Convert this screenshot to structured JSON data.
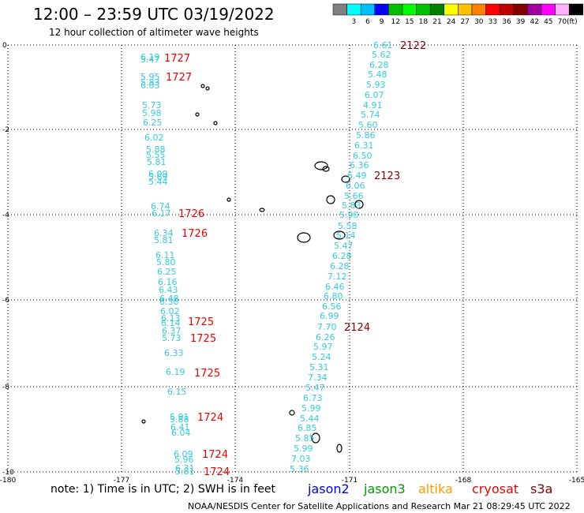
{
  "header": {
    "title": "12:00 – 23:59 UTC 03/19/2022",
    "subtitle": "12 hour collection of altimeter wave heights"
  },
  "color_scale": {
    "unit_label": "(ft)",
    "bins": [
      {
        "label": "",
        "color": "#808080"
      },
      {
        "label": "3",
        "color": "#00ffff"
      },
      {
        "label": "6",
        "color": "#00c0ff"
      },
      {
        "label": "9",
        "color": "#0000ff"
      },
      {
        "label": "12",
        "color": "#00c000"
      },
      {
        "label": "15",
        "color": "#00ff00"
      },
      {
        "label": "18",
        "color": "#00c000"
      },
      {
        "label": "21",
        "color": "#008000"
      },
      {
        "label": "24",
        "color": "#ffff00"
      },
      {
        "label": "27",
        "color": "#ffc000"
      },
      {
        "label": "30",
        "color": "#ff8000"
      },
      {
        "label": "33",
        "color": "#ff0000"
      },
      {
        "label": "36",
        "color": "#c00000"
      },
      {
        "label": "39",
        "color": "#800000"
      },
      {
        "label": "42",
        "color": "#a000a0"
      },
      {
        "label": "45",
        "color": "#ff00ff"
      },
      {
        "label": "70",
        "color": "#ffb0ff"
      },
      {
        "label": "",
        "color": "#000000"
      }
    ]
  },
  "axes": {
    "lon_ticks": [
      "-180",
      "-177",
      "-174",
      "-171",
      "-168",
      "-165"
    ],
    "lat_ticks": [
      "0",
      "-2",
      "-4",
      "-6",
      "-8",
      "-10"
    ]
  },
  "passes": {
    "west": {
      "color": "#33ccdd",
      "time_color": "#ee0000",
      "values": [
        [
          "6.19",
          178,
          72
        ],
        [
          "5.47",
          178,
          75
        ],
        [
          "5.95",
          178,
          97
        ],
        [
          "5.83",
          178,
          104
        ],
        [
          "6.03",
          178,
          108
        ],
        [
          "5.73",
          180,
          133
        ],
        [
          "5.98",
          180,
          143
        ],
        [
          "6.25",
          181,
          155
        ],
        [
          "6.02",
          183,
          174
        ],
        [
          "5.88",
          185,
          189
        ],
        [
          "5.55",
          185,
          196
        ],
        [
          "5.81",
          186,
          205
        ],
        [
          "6.09",
          188,
          220
        ],
        [
          "5.69",
          188,
          224
        ],
        [
          "5.44",
          188,
          230
        ],
        [
          "6.74",
          191,
          261
        ],
        [
          "6.17",
          192,
          270
        ],
        [
          "6.34",
          195,
          295
        ],
        [
          "5.81",
          195,
          304
        ],
        [
          "6.11",
          197,
          323
        ],
        [
          "5.80",
          198,
          332
        ],
        [
          "6.25",
          199,
          344
        ],
        [
          "6.16",
          200,
          357
        ],
        [
          "6.43",
          201,
          367
        ],
        [
          "6.48",
          202,
          378
        ],
        [
          "6.30",
          202,
          382
        ],
        [
          "6.02",
          203,
          394
        ],
        [
          "6.13",
          204,
          403
        ],
        [
          "6.14",
          204,
          409
        ],
        [
          "6.37",
          205,
          419
        ],
        [
          "5.73",
          205,
          428
        ],
        [
          "6.33",
          208,
          447
        ],
        [
          "6.19",
          210,
          471
        ],
        [
          "6.15",
          212,
          496
        ],
        [
          "5.91",
          215,
          528
        ],
        [
          "5.88",
          215,
          531
        ],
        [
          "6.41",
          216,
          541
        ],
        [
          "6.04",
          217,
          548
        ],
        [
          "6.09",
          220,
          575
        ],
        [
          "5.96",
          221,
          582
        ],
        [
          "6.31",
          222,
          593
        ],
        [
          "5.81",
          222,
          597
        ]
      ],
      "times": [
        [
          "1727",
          208,
          73
        ],
        [
          "1727",
          210,
          97
        ],
        [
          "1726",
          226,
          270
        ],
        [
          "1726",
          230,
          295
        ],
        [
          "1725",
          238,
          407
        ],
        [
          "1725",
          241,
          428
        ],
        [
          "1725",
          246,
          472
        ],
        [
          "1724",
          250,
          528
        ],
        [
          "1724",
          256,
          575
        ],
        [
          "1724",
          258,
          597
        ]
      ]
    },
    "east": {
      "color": "#33ccdd",
      "time_color": "#880000",
      "values": [
        [
          "6.61",
          473,
          57
        ],
        [
          "5.62",
          471,
          69
        ],
        [
          "6.28",
          468,
          82
        ],
        [
          "5.48",
          466,
          94
        ],
        [
          "5.93",
          464,
          107
        ],
        [
          "6.07",
          462,
          120
        ],
        [
          "4.91",
          460,
          133
        ],
        [
          "5.74",
          457,
          145
        ],
        [
          "5.60",
          454,
          158
        ],
        [
          "5.86",
          451,
          171
        ],
        [
          "6.31",
          449,
          184
        ],
        [
          "6.50",
          447,
          197
        ],
        [
          "6.36",
          443,
          209
        ],
        [
          "6.49",
          440,
          222
        ],
        [
          "6.06",
          438,
          235
        ],
        [
          "5.66",
          436,
          248
        ],
        [
          "5.83",
          433,
          260
        ],
        [
          "5.90",
          430,
          272
        ],
        [
          "5.58",
          428,
          286
        ],
        [
          "5.14",
          426,
          298
        ],
        [
          "5.47",
          423,
          311
        ],
        [
          "6.28",
          421,
          324
        ],
        [
          "6.28",
          418,
          337
        ],
        [
          "7.12",
          415,
          350
        ],
        [
          "6.46",
          412,
          363
        ],
        [
          "6.80",
          410,
          375
        ],
        [
          "6.56",
          408,
          388
        ],
        [
          "6.99",
          405,
          400
        ],
        [
          "7.70",
          402,
          414
        ],
        [
          "6.26",
          400,
          427
        ],
        [
          "5.97",
          397,
          439
        ],
        [
          "5.24",
          395,
          452
        ],
        [
          "5.31",
          392,
          465
        ],
        [
          "7.34",
          390,
          478
        ],
        [
          "5.47",
          387,
          491
        ],
        [
          "6.73",
          384,
          504
        ],
        [
          "5.99",
          382,
          517
        ],
        [
          "5.44",
          380,
          530
        ],
        [
          "6.85",
          377,
          542
        ],
        [
          "5.85",
          374,
          555
        ],
        [
          "5.99",
          372,
          568
        ],
        [
          "7.03",
          369,
          581
        ],
        [
          "5.36",
          367,
          594
        ]
      ],
      "times": [
        [
          "2122",
          507,
          57
        ],
        [
          "2123",
          474,
          222
        ],
        [
          "2124",
          436,
          414
        ]
      ]
    }
  },
  "islands": [
    [
      407,
      210,
      8,
      5
    ],
    [
      413,
      214,
      4,
      3
    ],
    [
      438,
      227,
      5,
      4
    ],
    [
      419,
      253,
      5,
      5
    ],
    [
      455,
      259,
      5,
      5
    ],
    [
      385,
      301,
      8,
      6
    ],
    [
      430,
      298,
      7,
      5
    ],
    [
      332,
      266,
      3,
      2
    ],
    [
      290,
      253,
      2,
      2
    ],
    [
      257,
      109,
      2,
      2
    ],
    [
      263,
      112,
      2,
      2
    ],
    [
      250,
      145,
      2,
      2
    ],
    [
      273,
      156,
      2,
      2
    ],
    [
      400,
      555,
      5,
      6
    ],
    [
      430,
      568,
      3,
      5
    ],
    [
      370,
      523,
      3,
      3
    ],
    [
      182,
      534,
      2,
      2
    ]
  ],
  "footer": {
    "note": "note:  1) Time is in UTC;  2) SWH is in feet",
    "satellites": [
      {
        "name": "jason2",
        "color": "#0000ee"
      },
      {
        "name": "jason3",
        "color": "#009900"
      },
      {
        "name": "altika",
        "color": "#ff9900"
      },
      {
        "name": "cryosat",
        "color": "#ee0000"
      },
      {
        "name": "s3a",
        "color": "#880000"
      }
    ],
    "credit": "NOAA/NESDIS Center for Satellite Applications and Research    Mar 21 08:29:45 UTC 2022"
  }
}
